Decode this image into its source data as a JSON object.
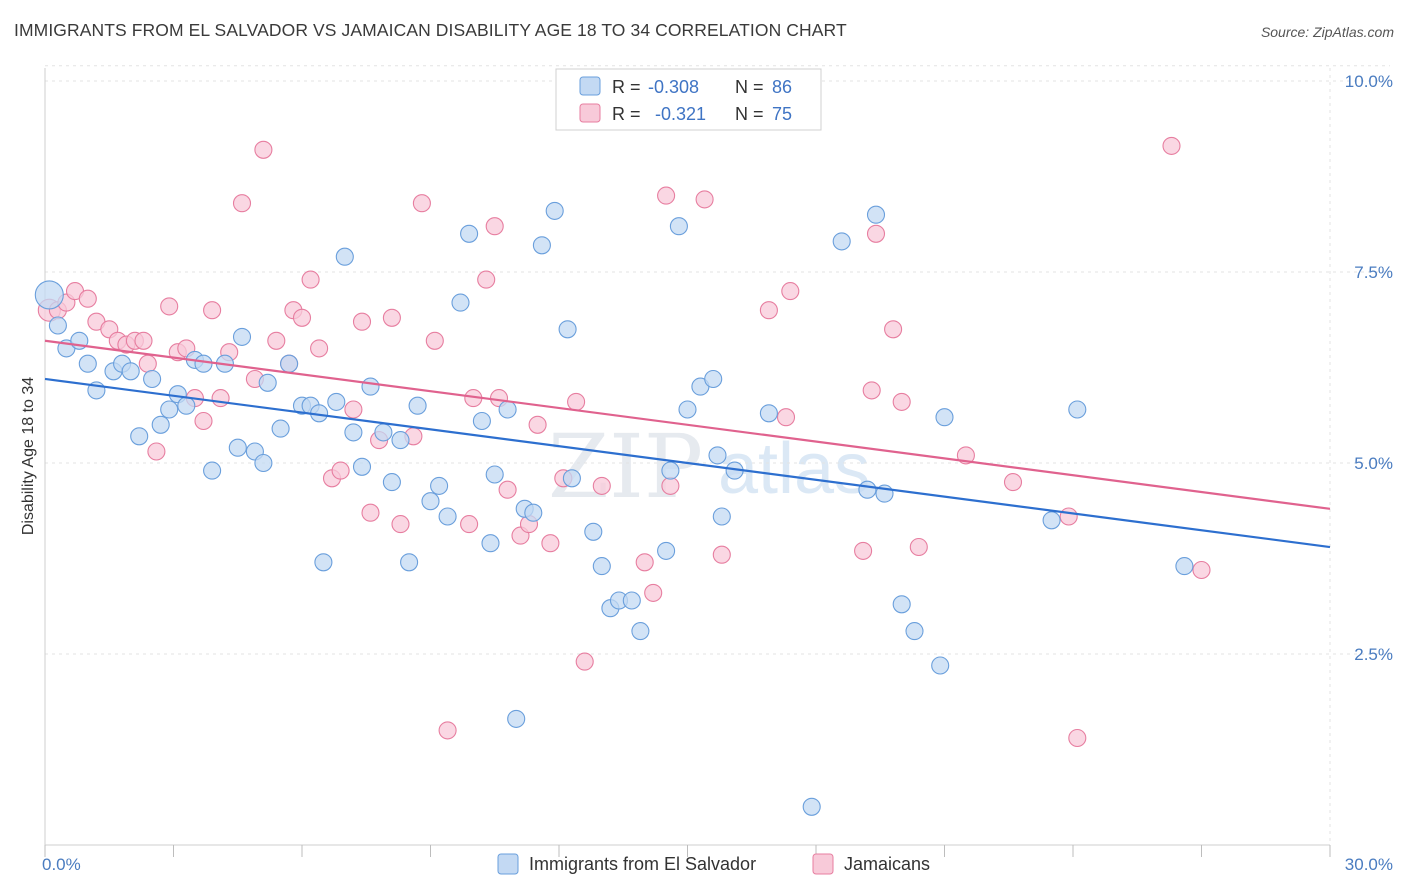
{
  "title": "IMMIGRANTS FROM EL SALVADOR VS JAMAICAN DISABILITY AGE 18 TO 34 CORRELATION CHART",
  "source": "Source: ZipAtlas.com",
  "watermark": {
    "zip": "ZIP",
    "atlas": "atlas"
  },
  "legend": {
    "r_label": "R =",
    "n_label": "N =",
    "rows": [
      {
        "r": "-0.308",
        "n": "86"
      },
      {
        "r": "-0.321",
        "n": "75"
      }
    ]
  },
  "chart_data": {
    "type": "scatter",
    "xlabel": "",
    "ylabel": "Disability Age 18 to 34",
    "xlim": [
      0,
      30
    ],
    "ylim": [
      0,
      10.5
    ],
    "x_tick_labels": {
      "min": "0.0%",
      "max": "30.0%"
    },
    "y_ticks": [
      2.5,
      5.0,
      7.5,
      10.0
    ],
    "y_tick_labels": [
      "2.5%",
      "5.0%",
      "7.5%",
      "10.0%"
    ],
    "colors": {
      "blue": "#6a9fdc",
      "blue_fill": "#c3d9f3",
      "blue_line": "#2d6fcf",
      "pink": "#e77ea0",
      "pink_fill": "#f8cad9",
      "pink_line": "#e0628e"
    },
    "series": [
      {
        "name": "Immigrants from El Salvador",
        "r": -0.308,
        "n": 86,
        "trend": {
          "x0": 0,
          "y0": 6.1,
          "x1": 30,
          "y1": 3.9
        },
        "points": [
          [
            0.1,
            7.2
          ],
          [
            0.3,
            6.8
          ],
          [
            0.5,
            6.5
          ],
          [
            0.8,
            6.6
          ],
          [
            1.0,
            6.3
          ],
          [
            1.2,
            5.95
          ],
          [
            1.6,
            6.2
          ],
          [
            1.8,
            6.3
          ],
          [
            2.0,
            6.2
          ],
          [
            2.2,
            5.35
          ],
          [
            2.5,
            6.1
          ],
          [
            2.7,
            5.5
          ],
          [
            2.9,
            5.7
          ],
          [
            3.1,
            5.9
          ],
          [
            3.3,
            5.75
          ],
          [
            3.5,
            6.35
          ],
          [
            3.7,
            6.3
          ],
          [
            3.9,
            4.9
          ],
          [
            4.2,
            6.3
          ],
          [
            4.5,
            5.2
          ],
          [
            4.6,
            6.65
          ],
          [
            4.9,
            5.15
          ],
          [
            5.1,
            5.0
          ],
          [
            5.2,
            6.05
          ],
          [
            5.5,
            5.45
          ],
          [
            5.7,
            6.3
          ],
          [
            6.0,
            5.75
          ],
          [
            6.2,
            5.75
          ],
          [
            6.4,
            5.65
          ],
          [
            6.5,
            3.7
          ],
          [
            6.8,
            5.8
          ],
          [
            7.0,
            7.7
          ],
          [
            7.2,
            5.4
          ],
          [
            7.4,
            4.95
          ],
          [
            7.6,
            6.0
          ],
          [
            7.9,
            5.4
          ],
          [
            8.1,
            4.75
          ],
          [
            8.3,
            5.3
          ],
          [
            8.5,
            3.7
          ],
          [
            8.7,
            5.75
          ],
          [
            9.0,
            4.5
          ],
          [
            9.2,
            4.7
          ],
          [
            9.4,
            4.3
          ],
          [
            9.7,
            7.1
          ],
          [
            9.9,
            8.0
          ],
          [
            10.2,
            5.55
          ],
          [
            10.4,
            3.95
          ],
          [
            10.5,
            4.85
          ],
          [
            10.8,
            5.7
          ],
          [
            11.0,
            1.65
          ],
          [
            11.2,
            4.4
          ],
          [
            11.4,
            4.35
          ],
          [
            11.6,
            7.85
          ],
          [
            11.9,
            8.3
          ],
          [
            12.2,
            6.75
          ],
          [
            12.3,
            4.8
          ],
          [
            12.8,
            4.1
          ],
          [
            13.0,
            3.65
          ],
          [
            13.2,
            3.1
          ],
          [
            13.4,
            3.2
          ],
          [
            13.7,
            3.2
          ],
          [
            13.9,
            2.8
          ],
          [
            14.5,
            3.85
          ],
          [
            14.6,
            4.9
          ],
          [
            14.8,
            8.1
          ],
          [
            15.0,
            5.7
          ],
          [
            15.3,
            6.0
          ],
          [
            15.6,
            6.1
          ],
          [
            15.8,
            4.3
          ],
          [
            15.7,
            5.1
          ],
          [
            16.1,
            4.9
          ],
          [
            16.9,
            5.65
          ],
          [
            17.9,
            0.5
          ],
          [
            18.6,
            7.9
          ],
          [
            19.2,
            4.65
          ],
          [
            19.4,
            8.25
          ],
          [
            19.6,
            4.6
          ],
          [
            20.0,
            3.15
          ],
          [
            20.3,
            2.8
          ],
          [
            20.9,
            2.35
          ],
          [
            21.0,
            5.6
          ],
          [
            23.5,
            4.25
          ],
          [
            24.1,
            5.7
          ],
          [
            26.6,
            3.65
          ]
        ]
      },
      {
        "name": "Jamaicans",
        "r": -0.321,
        "n": 75,
        "trend": {
          "x0": 0,
          "y0": 6.6,
          "x1": 30,
          "y1": 4.4
        },
        "points": [
          [
            0.1,
            7.0
          ],
          [
            0.3,
            7.0
          ],
          [
            0.5,
            7.1
          ],
          [
            0.7,
            7.25
          ],
          [
            1.0,
            7.15
          ],
          [
            1.2,
            6.85
          ],
          [
            1.5,
            6.75
          ],
          [
            1.7,
            6.6
          ],
          [
            1.9,
            6.55
          ],
          [
            2.1,
            6.6
          ],
          [
            2.3,
            6.6
          ],
          [
            2.4,
            6.3
          ],
          [
            2.6,
            5.15
          ],
          [
            2.9,
            7.05
          ],
          [
            3.1,
            6.45
          ],
          [
            3.3,
            6.5
          ],
          [
            3.5,
            5.85
          ],
          [
            3.7,
            5.55
          ],
          [
            3.9,
            7.0
          ],
          [
            4.1,
            5.85
          ],
          [
            4.3,
            6.45
          ],
          [
            4.6,
            8.4
          ],
          [
            4.9,
            6.1
          ],
          [
            5.1,
            9.1
          ],
          [
            5.4,
            6.6
          ],
          [
            5.7,
            6.3
          ],
          [
            5.8,
            7.0
          ],
          [
            6.0,
            6.9
          ],
          [
            6.2,
            7.4
          ],
          [
            6.4,
            6.5
          ],
          [
            6.7,
            4.8
          ],
          [
            6.9,
            4.9
          ],
          [
            7.2,
            5.7
          ],
          [
            7.4,
            6.85
          ],
          [
            7.6,
            4.35
          ],
          [
            7.8,
            5.3
          ],
          [
            8.1,
            6.9
          ],
          [
            8.3,
            4.2
          ],
          [
            8.6,
            5.35
          ],
          [
            8.8,
            8.4
          ],
          [
            9.1,
            6.6
          ],
          [
            9.4,
            1.5
          ],
          [
            9.9,
            4.2
          ],
          [
            10.0,
            5.85
          ],
          [
            10.3,
            7.4
          ],
          [
            10.5,
            8.1
          ],
          [
            10.6,
            5.85
          ],
          [
            10.8,
            4.65
          ],
          [
            11.1,
            4.05
          ],
          [
            11.3,
            4.2
          ],
          [
            11.5,
            5.5
          ],
          [
            11.8,
            3.95
          ],
          [
            12.1,
            4.8
          ],
          [
            12.4,
            5.8
          ],
          [
            12.6,
            2.4
          ],
          [
            13.0,
            4.7
          ],
          [
            14.0,
            3.7
          ],
          [
            14.2,
            3.3
          ],
          [
            14.5,
            8.5
          ],
          [
            14.6,
            4.7
          ],
          [
            15.4,
            8.45
          ],
          [
            15.8,
            3.8
          ],
          [
            16.9,
            7.0
          ],
          [
            17.3,
            5.6
          ],
          [
            17.4,
            7.25
          ],
          [
            19.1,
            3.85
          ],
          [
            19.3,
            5.95
          ],
          [
            19.4,
            8.0
          ],
          [
            19.8,
            6.75
          ],
          [
            20.0,
            5.8
          ],
          [
            20.4,
            3.9
          ],
          [
            21.5,
            5.1
          ],
          [
            22.6,
            4.75
          ],
          [
            23.9,
            4.3
          ],
          [
            24.1,
            1.4
          ],
          [
            26.3,
            9.15
          ],
          [
            27.0,
            3.6
          ]
        ]
      }
    ]
  }
}
